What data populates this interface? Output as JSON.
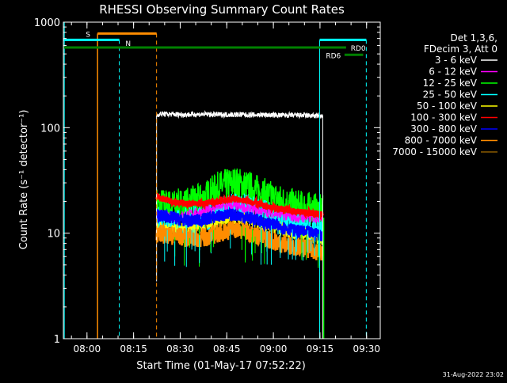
{
  "chart_data": {
    "type": "line",
    "title": "RHESSI Observing Summary Count Rates",
    "xlabel": "Start Time (01-May-17 07:52:22)",
    "ylabel": "Count Rate (s⁻¹ detector⁻¹)",
    "y_scale": "log",
    "ylim": [
      1,
      1000
    ],
    "xlim_minutes_after_0752": [
      0,
      102
    ],
    "x_ticks": [
      {
        "t": 7.6,
        "label": "08:00"
      },
      {
        "t": 22.6,
        "label": "08:15"
      },
      {
        "t": 37.6,
        "label": "08:30"
      },
      {
        "t": 52.6,
        "label": "08:45"
      },
      {
        "t": 67.6,
        "label": "09:00"
      },
      {
        "t": 82.6,
        "label": "09:15"
      },
      {
        "t": 97.6,
        "label": "09:30"
      }
    ],
    "y_ticks": [
      {
        "v": 1,
        "label": "1"
      },
      {
        "v": 10,
        "label": "10"
      },
      {
        "v": 100,
        "label": "100"
      },
      {
        "v": 1000,
        "label": "1000"
      }
    ],
    "legend_header": [
      "Det 1,3,6,",
      "FDecim 3, Att 0"
    ],
    "legend_position": "right",
    "series": [
      {
        "name": "3 - 6 keV",
        "color": "#ffffff",
        "t": [
          30,
          31,
          35,
          40,
          45,
          50,
          55,
          60,
          65,
          70,
          75,
          80,
          83.5
        ],
        "values": [
          130,
          135,
          134,
          133,
          134,
          133,
          133,
          132,
          132,
          131,
          131,
          130,
          128
        ]
      },
      {
        "name": "6 - 12 keV",
        "color": "#ff00ff",
        "t": [
          30,
          35,
          40,
          45,
          50,
          55,
          60,
          65,
          70,
          75,
          80,
          83.5
        ],
        "values": [
          15,
          14,
          15,
          16,
          18,
          18,
          17,
          16,
          15,
          14,
          14,
          14
        ]
      },
      {
        "name": "12 - 25 keV",
        "color": "#00ff00",
        "t": [
          30,
          35,
          40,
          45,
          50,
          55,
          60,
          65,
          70,
          75,
          80,
          83.5
        ],
        "values": [
          19,
          18,
          19,
          21,
          27,
          30,
          27,
          23,
          20,
          18,
          17,
          16
        ]
      },
      {
        "name": "25 - 50 keV",
        "color": "#00ffff",
        "t": [
          30,
          35,
          40,
          45,
          50,
          55,
          60,
          65,
          70,
          75,
          80,
          83.5
        ],
        "values": [
          13,
          12,
          13,
          14,
          16,
          18,
          17,
          15,
          13,
          12,
          11,
          11
        ]
      },
      {
        "name": "50 - 100 keV",
        "color": "#ffff00",
        "t": [
          30,
          35,
          40,
          45,
          50,
          55,
          60,
          65,
          70,
          75,
          80,
          83.5
        ],
        "values": [
          11,
          10.5,
          11,
          11.5,
          13,
          14,
          13,
          12,
          11,
          10,
          9.5,
          9
        ]
      },
      {
        "name": "100 - 300 keV",
        "color": "#ff0000",
        "t": [
          30,
          35,
          40,
          45,
          50,
          55,
          60,
          65,
          70,
          75,
          80,
          83.5
        ],
        "values": [
          22,
          20,
          19,
          19,
          20,
          21,
          20,
          18,
          17,
          16,
          15.5,
          15
        ]
      },
      {
        "name": "300 - 800 keV",
        "color": "#0000ff",
        "t": [
          30,
          35,
          40,
          45,
          50,
          55,
          60,
          65,
          70,
          75,
          80,
          83.5
        ],
        "values": [
          15,
          14,
          13,
          13.5,
          14.5,
          15,
          14,
          12.5,
          11.5,
          10.5,
          10,
          9.5
        ]
      },
      {
        "name": "800 - 7000 keV",
        "color": "#ff8c00",
        "t": [
          30,
          35,
          40,
          45,
          50,
          55,
          60,
          65,
          70,
          75,
          80,
          83.5
        ],
        "values": [
          10,
          9.5,
          9,
          9,
          10,
          11,
          10,
          9,
          8,
          7.5,
          7,
          6.5
        ]
      },
      {
        "name": "7000 - 15000 keV",
        "color": "#8b5a00",
        "t": [],
        "values": []
      }
    ],
    "annotations": {
      "S": {
        "label": "S",
        "color": "#ff8c00",
        "start": 11,
        "end": 30
      },
      "N": {
        "label": "N",
        "color": "#00ffff",
        "start": 0,
        "end": 18
      },
      "RD0": {
        "label": "RD0",
        "color": "#008000"
      },
      "RD6": {
        "label": "RD6",
        "color": "#008000"
      }
    }
  },
  "timestamp": "31-Aug-2022 23:02"
}
